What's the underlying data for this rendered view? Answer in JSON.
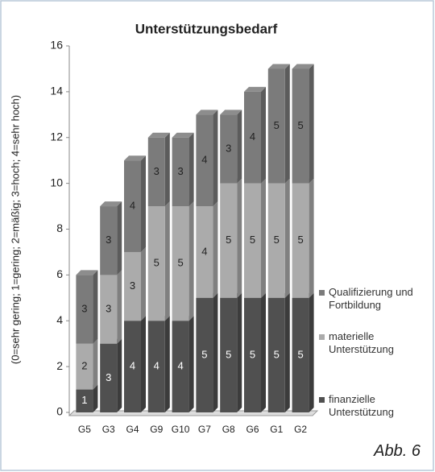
{
  "chart_data": {
    "type": "stacked_bar",
    "title": "Unterstützungsbedarf",
    "y_label": "(0=sehr gering; 1=gering; 2=mäßig; 3=hoch; 4=sehr hoch)",
    "annotation": "Abb. 6",
    "categories": [
      "G5",
      "G3",
      "G4",
      "G9",
      "G10",
      "G7",
      "G8",
      "G6",
      "G1",
      "G2"
    ],
    "series": [
      {
        "name": "finanzielle Unterstützung",
        "color": "#505050",
        "values": [
          1,
          3,
          4,
          4,
          4,
          5,
          5,
          5,
          5,
          5
        ]
      },
      {
        "name": "materielle Unterstützung",
        "color": "#ababab",
        "values": [
          2,
          3,
          3,
          5,
          5,
          4,
          5,
          5,
          5,
          5
        ]
      },
      {
        "name": "Qualifizierung und Fortbildung",
        "color": "#7b7b7b",
        "values": [
          3,
          3,
          4,
          3,
          3,
          4,
          3,
          4,
          5,
          5
        ]
      }
    ],
    "ylim": [
      0,
      16
    ],
    "yticks": [
      0,
      2,
      4,
      6,
      8,
      10,
      12,
      14,
      16
    ],
    "legend": "right"
  }
}
